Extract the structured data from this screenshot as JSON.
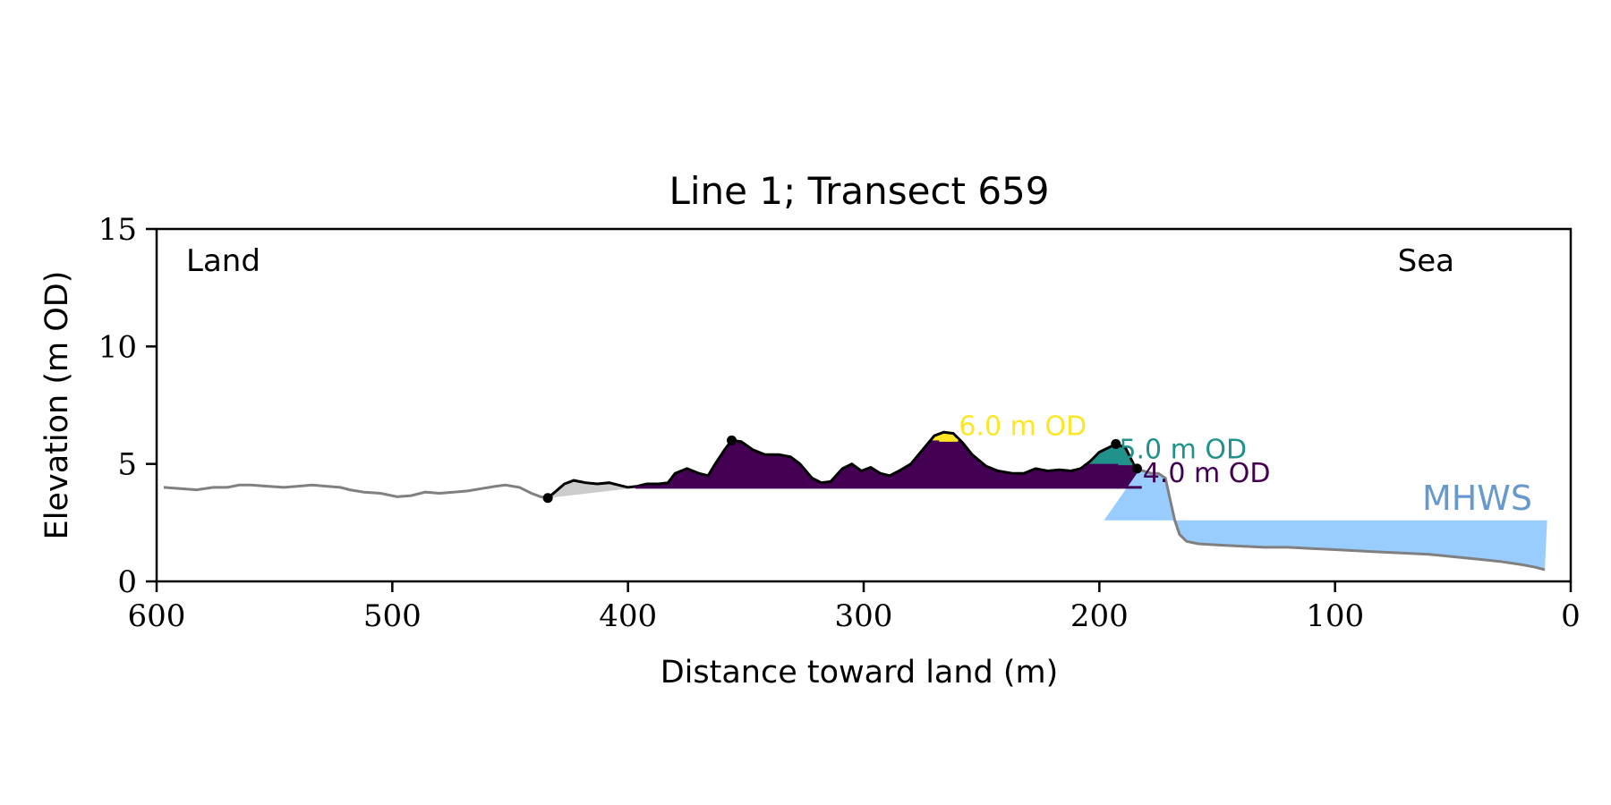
{
  "chart_data": {
    "type": "area",
    "title": "Line 1; Transect 659",
    "xlabel": "Distance toward land (m)",
    "ylabel": "Elevation (m OD)",
    "xlim": [
      600,
      0
    ],
    "ylim": [
      0,
      15
    ],
    "xticks": [
      600,
      500,
      400,
      300,
      200,
      100,
      0
    ],
    "yticks": [
      0,
      5,
      10,
      15
    ],
    "x_tick_labels": [
      "600",
      "500",
      "400",
      "300",
      "200",
      "100",
      "0"
    ],
    "y_tick_labels": [
      "0",
      "5",
      "10",
      "15"
    ],
    "grid": false,
    "corner_labels": {
      "left": "Land",
      "right": "Sea"
    },
    "mhws": {
      "label": "MHWS",
      "elevation": 2.6,
      "x_start": 198,
      "x_end": 10
    },
    "levels": [
      {
        "label": "4.0 m OD",
        "elevation": 4.0,
        "x_from": 397,
        "x_to": 182,
        "color": "#440154"
      },
      {
        "label": "5.0 m OD",
        "elevation": 5.0,
        "x_from": 232,
        "x_to": 192,
        "color": "#21918c"
      },
      {
        "label": "6.0 m OD",
        "elevation": 6.0,
        "x_from": 290,
        "x_to": 260,
        "color": "#fde725"
      }
    ],
    "colors": {
      "ground": "#808080",
      "dune": "#000000",
      "sand_fill": "#cccccc",
      "mhws_fill": "#99ccff",
      "mhws_text": "#6699cc"
    },
    "profile": [
      [
        597,
        4.0
      ],
      [
        590,
        3.95
      ],
      [
        583,
        3.9
      ],
      [
        576,
        4.0
      ],
      [
        570,
        4.0
      ],
      [
        565,
        4.1
      ],
      [
        560,
        4.1
      ],
      [
        553,
        4.05
      ],
      [
        546,
        4.0
      ],
      [
        540,
        4.05
      ],
      [
        534,
        4.1
      ],
      [
        528,
        4.05
      ],
      [
        522,
        4.0
      ],
      [
        518,
        3.9
      ],
      [
        512,
        3.8
      ],
      [
        505,
        3.75
      ],
      [
        498,
        3.6
      ],
      [
        492,
        3.65
      ],
      [
        486,
        3.8
      ],
      [
        480,
        3.75
      ],
      [
        474,
        3.8
      ],
      [
        468,
        3.85
      ],
      [
        462,
        3.95
      ],
      [
        456,
        4.05
      ],
      [
        452,
        4.1
      ],
      [
        446,
        4.0
      ],
      [
        441,
        3.75
      ],
      [
        437,
        3.6
      ],
      [
        434,
        3.55
      ]
    ],
    "dune_profile": [
      [
        434,
        3.55
      ],
      [
        431,
        3.8
      ],
      [
        427,
        4.15
      ],
      [
        423,
        4.3
      ],
      [
        418,
        4.2
      ],
      [
        413,
        4.15
      ],
      [
        408,
        4.2
      ],
      [
        404,
        4.1
      ],
      [
        400,
        4.0
      ],
      [
        396,
        4.05
      ],
      [
        392,
        4.15
      ],
      [
        387,
        4.15
      ],
      [
        383,
        4.2
      ],
      [
        380,
        4.6
      ],
      [
        375,
        4.8
      ],
      [
        370,
        4.6
      ],
      [
        366,
        4.5
      ],
      [
        363,
        5.0
      ],
      [
        359,
        5.6
      ],
      [
        356,
        6.0
      ],
      [
        352,
        5.95
      ],
      [
        347,
        5.6
      ],
      [
        342,
        5.4
      ],
      [
        336,
        5.4
      ],
      [
        331,
        5.3
      ],
      [
        327,
        5.0
      ],
      [
        322,
        4.4
      ],
      [
        318,
        4.2
      ],
      [
        314,
        4.25
      ],
      [
        309,
        4.8
      ],
      [
        305,
        5.0
      ],
      [
        301,
        4.7
      ],
      [
        297,
        4.85
      ],
      [
        293,
        4.6
      ],
      [
        289,
        4.5
      ],
      [
        285,
        4.7
      ],
      [
        280,
        5.0
      ],
      [
        275,
        5.6
      ],
      [
        270,
        6.2
      ],
      [
        266,
        6.35
      ],
      [
        262,
        6.3
      ],
      [
        258,
        5.9
      ],
      [
        254,
        5.4
      ],
      [
        248,
        4.9
      ],
      [
        243,
        4.7
      ],
      [
        237,
        4.6
      ],
      [
        232,
        4.6
      ],
      [
        227,
        4.8
      ],
      [
        222,
        4.7
      ],
      [
        217,
        4.75
      ],
      [
        212,
        4.7
      ],
      [
        208,
        4.8
      ],
      [
        204,
        5.1
      ],
      [
        200,
        5.5
      ],
      [
        196,
        5.7
      ],
      [
        193,
        5.85
      ],
      [
        189,
        5.7
      ],
      [
        185,
        4.9
      ],
      [
        183,
        4.75
      ]
    ],
    "profile_after": [
      [
        183,
        4.75
      ],
      [
        178,
        4.6
      ],
      [
        175,
        4.6
      ],
      [
        172,
        4.4
      ],
      [
        170,
        3.5
      ],
      [
        168,
        2.6
      ],
      [
        166,
        2.0
      ],
      [
        163,
        1.7
      ],
      [
        158,
        1.6
      ],
      [
        150,
        1.55
      ],
      [
        140,
        1.5
      ],
      [
        130,
        1.45
      ],
      [
        120,
        1.45
      ],
      [
        110,
        1.4
      ],
      [
        100,
        1.35
      ],
      [
        90,
        1.3
      ],
      [
        80,
        1.25
      ],
      [
        70,
        1.2
      ],
      [
        60,
        1.15
      ],
      [
        50,
        1.05
      ],
      [
        40,
        0.95
      ],
      [
        30,
        0.85
      ],
      [
        20,
        0.7
      ],
      [
        15,
        0.6
      ],
      [
        11,
        0.5
      ]
    ],
    "points": [
      {
        "x": 434,
        "y": 3.55
      },
      {
        "x": 356,
        "y": 6.0
      },
      {
        "x": 193,
        "y": 5.85
      },
      {
        "x": 184,
        "y": 4.8
      }
    ]
  }
}
